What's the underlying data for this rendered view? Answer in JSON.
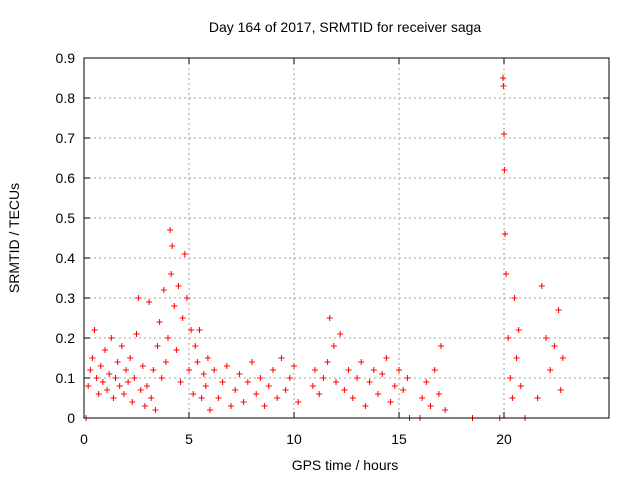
{
  "chart_data": {
    "type": "scatter",
    "title": "Day 164 of 2017, SRMTID for receiver saga",
    "xlabel": "GPS time / hours",
    "ylabel": "SRMTID / TECUs",
    "xlim": [
      0,
      25
    ],
    "ylim": [
      0,
      0.9
    ],
    "xticks": [
      0,
      5,
      10,
      15,
      20
    ],
    "xtick_labels": [
      "0",
      "5",
      "10",
      "15",
      "20"
    ],
    "yticks": [
      0,
      0.1,
      0.2,
      0.3,
      0.4,
      0.5,
      0.6,
      0.7,
      0.8,
      0.9
    ],
    "ytick_labels": [
      "0",
      "0.1",
      "0.2",
      "0.3",
      "0.4",
      "0.5",
      "0.6",
      "0.7",
      "0.8",
      "0.9"
    ],
    "grid": true,
    "marker": "+",
    "color": "#ff0000",
    "series": [
      {
        "name": "SRMTID",
        "points": [
          [
            0.1,
            0.0
          ],
          [
            0.2,
            0.08
          ],
          [
            0.3,
            0.12
          ],
          [
            0.4,
            0.15
          ],
          [
            0.5,
            0.22
          ],
          [
            0.6,
            0.1
          ],
          [
            0.7,
            0.06
          ],
          [
            0.8,
            0.13
          ],
          [
            0.9,
            0.09
          ],
          [
            1.0,
            0.17
          ],
          [
            1.1,
            0.07
          ],
          [
            1.2,
            0.11
          ],
          [
            1.3,
            0.2
          ],
          [
            1.4,
            0.05
          ],
          [
            1.5,
            0.1
          ],
          [
            1.6,
            0.14
          ],
          [
            1.7,
            0.08
          ],
          [
            1.8,
            0.18
          ],
          [
            1.9,
            0.06
          ],
          [
            2.0,
            0.12
          ],
          [
            2.1,
            0.09
          ],
          [
            2.2,
            0.15
          ],
          [
            2.3,
            0.04
          ],
          [
            2.4,
            0.1
          ],
          [
            2.5,
            0.21
          ],
          [
            2.6,
            0.3
          ],
          [
            2.7,
            0.07
          ],
          [
            2.8,
            0.13
          ],
          [
            2.9,
            0.03
          ],
          [
            3.0,
            0.08
          ],
          [
            3.1,
            0.29
          ],
          [
            3.2,
            0.05
          ],
          [
            3.3,
            0.12
          ],
          [
            3.4,
            0.02
          ],
          [
            3.5,
            0.18
          ],
          [
            3.6,
            0.24
          ],
          [
            3.7,
            0.1
          ],
          [
            3.8,
            0.32
          ],
          [
            3.9,
            0.14
          ],
          [
            4.0,
            0.2
          ],
          [
            4.1,
            0.47
          ],
          [
            4.15,
            0.36
          ],
          [
            4.2,
            0.43
          ],
          [
            4.3,
            0.28
          ],
          [
            4.4,
            0.17
          ],
          [
            4.5,
            0.33
          ],
          [
            4.6,
            0.09
          ],
          [
            4.7,
            0.25
          ],
          [
            4.8,
            0.41
          ],
          [
            4.9,
            0.3
          ],
          [
            5.0,
            0.12
          ],
          [
            5.1,
            0.22
          ],
          [
            5.2,
            0.06
          ],
          [
            5.3,
            0.18
          ],
          [
            5.4,
            0.14
          ],
          [
            5.5,
            0.22
          ],
          [
            5.6,
            0.05
          ],
          [
            5.7,
            0.11
          ],
          [
            5.8,
            0.08
          ],
          [
            5.9,
            0.15
          ],
          [
            6.0,
            0.02
          ],
          [
            6.2,
            0.12
          ],
          [
            6.4,
            0.05
          ],
          [
            6.6,
            0.09
          ],
          [
            6.8,
            0.13
          ],
          [
            7.0,
            0.03
          ],
          [
            7.2,
            0.07
          ],
          [
            7.4,
            0.11
          ],
          [
            7.6,
            0.04
          ],
          [
            7.8,
            0.09
          ],
          [
            8.0,
            0.14
          ],
          [
            8.2,
            0.06
          ],
          [
            8.4,
            0.1
          ],
          [
            8.6,
            0.03
          ],
          [
            8.8,
            0.08
          ],
          [
            9.0,
            0.12
          ],
          [
            9.2,
            0.05
          ],
          [
            9.4,
            0.15
          ],
          [
            9.6,
            0.07
          ],
          [
            9.8,
            0.1
          ],
          [
            10.0,
            0.13
          ],
          [
            10.2,
            0.04
          ],
          [
            10.9,
            0.08
          ],
          [
            11.0,
            0.12
          ],
          [
            11.2,
            0.06
          ],
          [
            11.4,
            0.1
          ],
          [
            11.6,
            0.14
          ],
          [
            11.7,
            0.25
          ],
          [
            11.9,
            0.18
          ],
          [
            12.0,
            0.09
          ],
          [
            12.2,
            0.21
          ],
          [
            12.4,
            0.07
          ],
          [
            12.6,
            0.12
          ],
          [
            12.8,
            0.05
          ],
          [
            13.0,
            0.1
          ],
          [
            13.2,
            0.14
          ],
          [
            13.4,
            0.03
          ],
          [
            13.6,
            0.09
          ],
          [
            13.8,
            0.12
          ],
          [
            14.0,
            0.06
          ],
          [
            14.2,
            0.11
          ],
          [
            14.4,
            0.15
          ],
          [
            14.6,
            0.04
          ],
          [
            14.8,
            0.08
          ],
          [
            15.0,
            0.12
          ],
          [
            15.2,
            0.07
          ],
          [
            15.4,
            0.1
          ],
          [
            15.5,
            0.0
          ],
          [
            16.0,
            0.0
          ],
          [
            16.1,
            0.05
          ],
          [
            16.3,
            0.09
          ],
          [
            16.5,
            0.03
          ],
          [
            16.7,
            0.12
          ],
          [
            16.9,
            0.06
          ],
          [
            17.0,
            0.18
          ],
          [
            17.2,
            0.02
          ],
          [
            18.5,
            0.0
          ],
          [
            19.8,
            0.0
          ],
          [
            19.95,
            0.85
          ],
          [
            19.97,
            0.83
          ],
          [
            20.0,
            0.71
          ],
          [
            20.02,
            0.62
          ],
          [
            20.05,
            0.46
          ],
          [
            20.1,
            0.36
          ],
          [
            20.2,
            0.2
          ],
          [
            20.3,
            0.1
          ],
          [
            20.4,
            0.05
          ],
          [
            20.5,
            0.3
          ],
          [
            20.6,
            0.15
          ],
          [
            20.7,
            0.22
          ],
          [
            20.8,
            0.08
          ],
          [
            21.0,
            0.0
          ],
          [
            21.6,
            0.05
          ],
          [
            21.8,
            0.33
          ],
          [
            22.0,
            0.2
          ],
          [
            22.2,
            0.12
          ],
          [
            22.4,
            0.18
          ],
          [
            22.6,
            0.27
          ],
          [
            22.7,
            0.07
          ],
          [
            22.8,
            0.15
          ]
        ]
      }
    ]
  }
}
